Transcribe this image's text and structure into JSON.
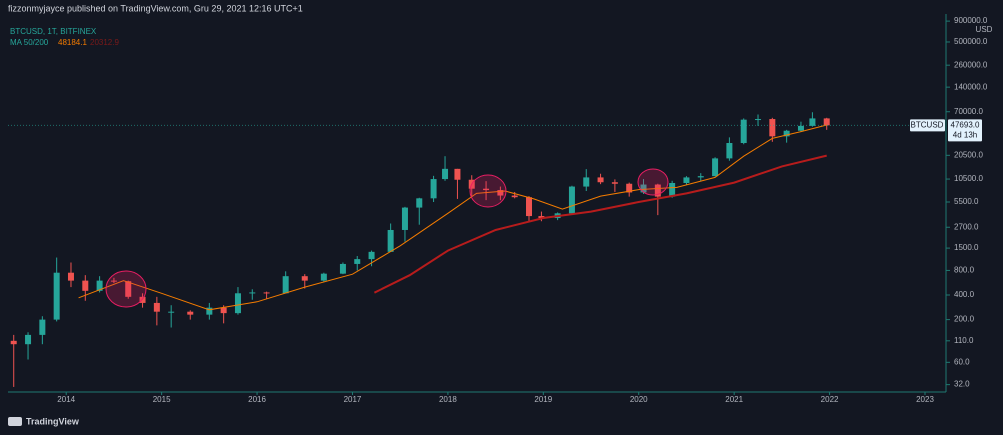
{
  "header": {
    "publisher": "fizzonmyjayce published on TradingView.com, Gru 29, 2021 12:16 UTC+1"
  },
  "footer": {
    "brand": "TradingView"
  },
  "chart_data": {
    "type": "candlestick",
    "title": "BTCUSD, 1T, BITFINEX",
    "indicator_label": "MA 50/200",
    "indicator_values": [
      "48184.1",
      "20312.9"
    ],
    "log_scale": true,
    "up_color": "#26a69a",
    "down_color": "#ef5350",
    "price_label": {
      "symbol": "BTCUSD",
      "price": "47693.0",
      "countdown": "4d 13h"
    },
    "y_unit": "USD",
    "xlim": [
      2013.39,
      2023.22
    ],
    "xticks": [
      2014,
      2015,
      2016,
      2017,
      2018,
      2019,
      2020,
      2021,
      2022,
      2023
    ],
    "ylim": [
      26,
      1100000
    ],
    "yticks": [
      {
        "value": 32,
        "label": "32.0"
      },
      {
        "value": 60,
        "label": "60.0"
      },
      {
        "value": 110,
        "label": "110.0"
      },
      {
        "value": 200,
        "label": "200.0"
      },
      {
        "value": 400,
        "label": "400.0"
      },
      {
        "value": 800,
        "label": "800.0"
      },
      {
        "value": 1500,
        "label": "1500.0"
      },
      {
        "value": 2700,
        "label": "2700.0"
      },
      {
        "value": 5500,
        "label": "5500.0"
      },
      {
        "value": 10500,
        "label": "10500.0"
      },
      {
        "value": 20500,
        "label": "20500.0"
      },
      {
        "value": 70000,
        "label": "70000.0"
      },
      {
        "value": 140000,
        "label": "140000.0"
      },
      {
        "value": 260000,
        "label": "260000.0"
      },
      {
        "value": 500000,
        "label": "500000.0"
      },
      {
        "value": 900000,
        "label": "900000.0"
      }
    ],
    "x": [
      2013.45,
      2013.6,
      2013.75,
      2013.9,
      2014.05,
      2014.2,
      2014.35,
      2014.5,
      2014.65,
      2014.8,
      2014.95,
      2015.1,
      2015.3,
      2015.5,
      2015.65,
      2015.8,
      2015.95,
      2016.1,
      2016.3,
      2016.5,
      2016.7,
      2016.9,
      2017.05,
      2017.2,
      2017.4,
      2017.55,
      2017.7,
      2017.85,
      2017.97,
      2018.1,
      2018.25,
      2018.4,
      2018.55,
      2018.7,
      2018.85,
      2018.98,
      2019.15,
      2019.3,
      2019.45,
      2019.6,
      2019.75,
      2019.9,
      2020.05,
      2020.2,
      2020.35,
      2020.5,
      2020.65,
      2020.8,
      2020.95,
      2021.1,
      2021.25,
      2021.4,
      2021.55,
      2021.7,
      2021.82,
      2021.97
    ],
    "open": [
      110,
      100,
      130,
      200,
      750,
      600,
      450,
      600,
      590,
      380,
      320,
      250,
      250,
      230,
      280,
      240,
      420,
      430,
      420,
      680,
      600,
      730,
      960,
      1100,
      1350,
      2500,
      4700,
      6100,
      10500,
      14000,
      10300,
      8000,
      7700,
      6600,
      6300,
      3700,
      3500,
      4000,
      8500,
      11000,
      9600,
      9200,
      7200,
      9000,
      6400,
      9400,
      11000,
      11400,
      18800,
      29000,
      56000,
      57000,
      35000,
      41000,
      47000,
      58000
    ],
    "high": [
      130,
      140,
      220,
      1150,
      1000,
      700,
      680,
      650,
      600,
      420,
      380,
      300,
      260,
      320,
      300,
      500,
      470,
      440,
      780,
      720,
      750,
      1000,
      1200,
      1400,
      3000,
      4800,
      6200,
      11500,
      20000,
      14000,
      11700,
      9900,
      8500,
      7300,
      6500,
      4200,
      4100,
      8700,
      13900,
      12200,
      10400,
      9500,
      10500,
      9200,
      10000,
      11400,
      12400,
      19400,
      34000,
      58000,
      64800,
      59000,
      42000,
      52900,
      69000,
      59000
    ],
    "low": [
      30,
      65,
      100,
      190,
      500,
      340,
      430,
      560,
      360,
      280,
      170,
      160,
      200,
      200,
      180,
      230,
      350,
      360,
      420,
      480,
      580,
      720,
      800,
      900,
      1350,
      1800,
      2900,
      5500,
      10000,
      6000,
      6400,
      5800,
      5800,
      6100,
      3100,
      3200,
      3300,
      3900,
      7500,
      9100,
      7300,
      6400,
      6900,
      3800,
      6200,
      8900,
      9900,
      11300,
      17600,
      28000,
      47000,
      30000,
      29300,
      39600,
      46000,
      42000
    ],
    "close": [
      100,
      130,
      200,
      750,
      600,
      450,
      600,
      590,
      380,
      320,
      250,
      250,
      230,
      280,
      240,
      420,
      430,
      420,
      680,
      600,
      730,
      960,
      1100,
      1350,
      2500,
      4700,
      6100,
      10500,
      14000,
      10300,
      8000,
      7700,
      6600,
      6300,
      3700,
      3500,
      4000,
      8500,
      11000,
      9600,
      9200,
      7200,
      9000,
      6400,
      9400,
      11000,
      11400,
      18800,
      29000,
      56000,
      57000,
      35000,
      41000,
      47000,
      58000,
      47693
    ],
    "moving_averages": [
      {
        "color": "#f57c00",
        "x": [
          2014.13,
          2014.6,
          2015.0,
          2015.5,
          2016.0,
          2016.5,
          2017.0,
          2017.5,
          2018.0,
          2018.3,
          2018.6,
          2018.9,
          2019.2,
          2019.6,
          2020.0,
          2020.4,
          2020.8,
          2021.1,
          2021.4,
          2021.7,
          2021.97
        ],
        "values": [
          370,
          600,
          420,
          264,
          330,
          500,
          720,
          1600,
          4000,
          7000,
          7500,
          6000,
          4500,
          6500,
          7800,
          8300,
          11000,
          20000,
          33000,
          40000,
          48184.1
        ]
      },
      {
        "color": "#b71c1c",
        "x": [
          2017.23,
          2017.6,
          2018.0,
          2018.5,
          2019.0,
          2019.5,
          2020.0,
          2020.5,
          2021.0,
          2021.5,
          2021.97
        ],
        "values": [
          427,
          700,
          1400,
          2500,
          3500,
          4200,
          5500,
          7000,
          9500,
          15000,
          20312.9
        ]
      }
    ]
  }
}
